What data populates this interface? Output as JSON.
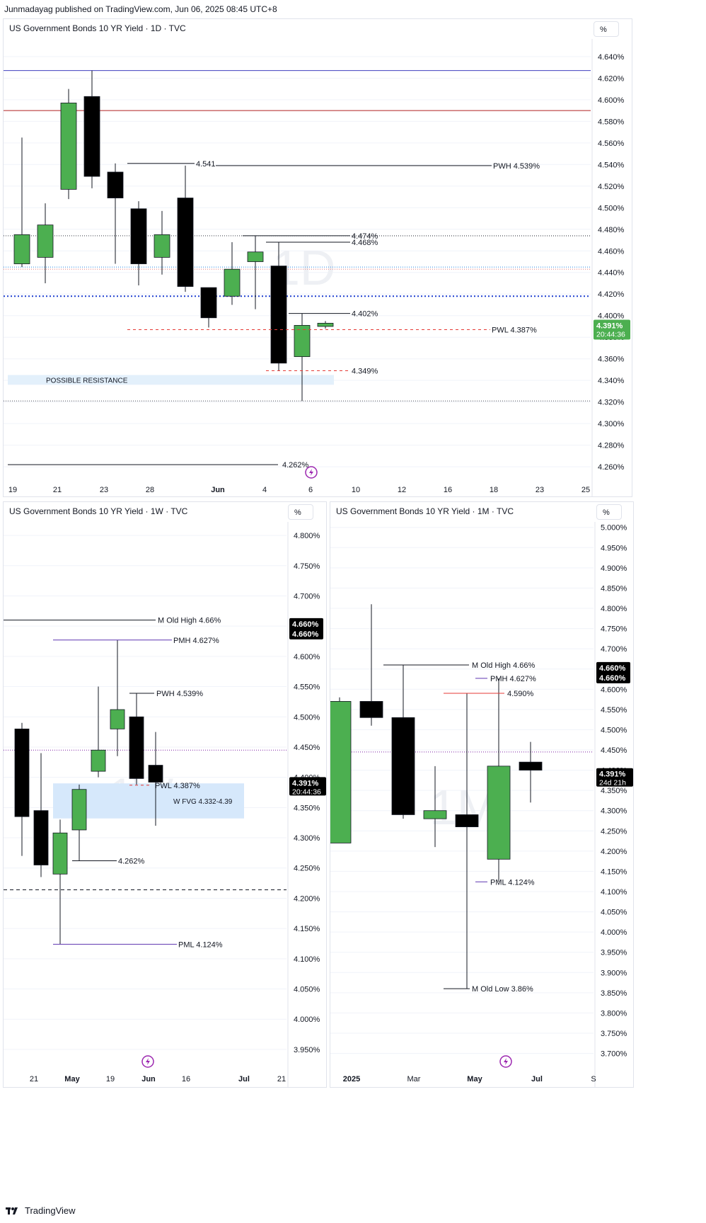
{
  "header": {
    "published": "Junmadayag published on TradingView.com, Jun 06, 2025 08:45 UTC+8"
  },
  "footer": {
    "brand": "TradingView"
  },
  "chart_data": [
    {
      "id": "daily",
      "type": "candlestick",
      "title": "US Government Bonds 10 YR Yield · 1D · TVC",
      "unit": "%",
      "watermark": "1D",
      "ylim": [
        4.245,
        4.655
      ],
      "y_ticks": [
        "4.640%",
        "4.620%",
        "4.600%",
        "4.580%",
        "4.560%",
        "4.540%",
        "4.520%",
        "4.500%",
        "4.480%",
        "4.460%",
        "4.440%",
        "4.420%",
        "4.400%",
        "4.380%",
        "4.360%",
        "4.340%",
        "4.320%",
        "4.300%",
        "4.280%",
        "4.260%"
      ],
      "x_ticks": [
        "19",
        "21",
        "23",
        "28",
        "Jun",
        "4",
        "6",
        "10",
        "12",
        "16",
        "18",
        "23",
        "25"
      ],
      "candles": [
        {
          "o": 4.448,
          "h": 4.565,
          "l": 4.445,
          "c": 4.475
        },
        {
          "o": 4.454,
          "h": 4.504,
          "l": 4.43,
          "c": 4.484
        },
        {
          "o": 4.517,
          "h": 4.61,
          "l": 4.508,
          "c": 4.597
        },
        {
          "o": 4.603,
          "h": 4.627,
          "l": 4.518,
          "c": 4.529
        },
        {
          "o": 4.533,
          "h": 4.541,
          "l": 4.448,
          "c": 4.509
        },
        {
          "o": 4.499,
          "h": 4.506,
          "l": 4.428,
          "c": 4.448
        },
        {
          "o": 4.454,
          "h": 4.497,
          "l": 4.438,
          "c": 4.475
        },
        {
          "o": 4.509,
          "h": 4.539,
          "l": 4.422,
          "c": 4.427
        },
        {
          "o": 4.426,
          "h": 4.426,
          "l": 4.389,
          "c": 4.398
        },
        {
          "o": 4.418,
          "h": 4.468,
          "l": 4.41,
          "c": 4.443
        },
        {
          "o": 4.45,
          "h": 4.474,
          "l": 4.406,
          "c": 4.459
        },
        {
          "o": 4.446,
          "h": 4.468,
          "l": 4.349,
          "c": 4.356
        },
        {
          "o": 4.362,
          "h": 4.402,
          "l": 4.321,
          "c": 4.391
        },
        {
          "o": 4.39,
          "h": 4.395,
          "l": 4.388,
          "c": 4.393
        }
      ],
      "last_price": {
        "value": "4.391%",
        "countdown": "20:44:36"
      },
      "hlines": [
        {
          "y": 4.627,
          "color": "#3f3fbf",
          "style": "solid"
        },
        {
          "y": 4.59,
          "color": "#b22222",
          "style": "solid"
        },
        {
          "y": 4.445,
          "color": "#1e88e5",
          "style": "dotted"
        },
        {
          "y": 4.443,
          "color": "#e57373",
          "style": "dotted"
        },
        {
          "y": 4.418,
          "color": "#1e3fd0",
          "style": "dotted-thick"
        }
      ],
      "labels": [
        {
          "text": "4.541",
          "y": 4.541
        },
        {
          "text": "PWH 4.539%",
          "y": 4.539
        },
        {
          "text": "4.474%",
          "y": 4.474
        },
        {
          "text": "4.468%",
          "y": 4.468
        },
        {
          "text": "4.402%",
          "y": 4.402
        },
        {
          "text": "PWL  4.387%",
          "y": 4.387
        },
        {
          "text": "4.349%",
          "y": 4.349
        },
        {
          "text": "4.262%",
          "y": 4.262
        }
      ],
      "zone": {
        "text": "POSSIBLE RESISTANCE",
        "y_top": 4.345,
        "y_bottom": 4.336
      }
    },
    {
      "id": "weekly",
      "type": "candlestick",
      "title": "US Government Bonds 10 YR Yield · 1W · TVC",
      "unit": "%",
      "watermark": "1W",
      "ylim": [
        3.93,
        4.82
      ],
      "y_ticks": [
        "4.800%",
        "4.750%",
        "4.700%",
        "4.650%",
        "4.600%",
        "4.550%",
        "4.500%",
        "4.450%",
        "4.400%",
        "4.350%",
        "4.300%",
        "4.250%",
        "4.200%",
        "4.150%",
        "4.100%",
        "4.050%",
        "4.000%",
        "3.950%"
      ],
      "x_ticks": [
        "21",
        "May",
        "19",
        "Jun",
        "16",
        "Jul",
        "21"
      ],
      "candles": [
        {
          "o": 4.48,
          "h": 4.49,
          "l": 4.27,
          "c": 4.335
        },
        {
          "o": 4.345,
          "h": 4.44,
          "l": 4.235,
          "c": 4.255
        },
        {
          "o": 4.24,
          "h": 4.33,
          "l": 4.124,
          "c": 4.308
        },
        {
          "o": 4.313,
          "h": 4.388,
          "l": 4.262,
          "c": 4.38
        },
        {
          "o": 4.41,
          "h": 4.55,
          "l": 4.4,
          "c": 4.445
        },
        {
          "o": 4.48,
          "h": 4.627,
          "l": 4.435,
          "c": 4.512
        },
        {
          "o": 4.5,
          "h": 4.539,
          "l": 4.388,
          "c": 4.398
        },
        {
          "o": 4.42,
          "h": 4.475,
          "l": 4.32,
          "c": 4.392
        }
      ],
      "last_price": {
        "value": "4.391%",
        "countdown": "20:44:36"
      },
      "marker": {
        "value": "4.660%"
      },
      "hlines": [
        {
          "y": 4.445,
          "color": "#7b1fa2",
          "style": "dotted"
        },
        {
          "y": 4.214,
          "color": "#131722",
          "style": "dashed"
        }
      ],
      "labels": [
        {
          "text": "M Old High 4.66%",
          "y": 4.66
        },
        {
          "text": "PMH 4.627%",
          "y": 4.627
        },
        {
          "text": "PWH 4.539%",
          "y": 4.539
        },
        {
          "text": "PWL  4.387%",
          "y": 4.387
        },
        {
          "text": "4.262%",
          "y": 4.262
        },
        {
          "text": "PML 4.124%",
          "y": 4.124
        }
      ],
      "zone": {
        "text": "W FVG   4.332-4.39",
        "y_top": 4.39,
        "y_bottom": 4.332
      }
    },
    {
      "id": "monthly",
      "type": "candlestick",
      "title": "US Government Bonds 10 YR Yield · 1M · TVC",
      "unit": "%",
      "watermark": "1M",
      "ylim": [
        3.68,
        5.01
      ],
      "y_ticks": [
        "5.000%",
        "4.950%",
        "4.900%",
        "4.850%",
        "4.800%",
        "4.750%",
        "4.700%",
        "4.650%",
        "4.600%",
        "4.550%",
        "4.500%",
        "4.450%",
        "4.400%",
        "4.350%",
        "4.300%",
        "4.250%",
        "4.200%",
        "4.150%",
        "4.100%",
        "4.050%",
        "4.000%",
        "3.950%",
        "3.900%",
        "3.850%",
        "3.800%",
        "3.750%",
        "3.700%"
      ],
      "x_ticks": [
        "2025",
        "Mar",
        "May",
        "Jul",
        "S"
      ],
      "candles": [
        {
          "o": 4.22,
          "h": 4.58,
          "l": 4.22,
          "c": 4.57
        },
        {
          "o": 4.57,
          "h": 4.81,
          "l": 4.51,
          "c": 4.53
        },
        {
          "o": 4.53,
          "h": 4.66,
          "l": 4.28,
          "c": 4.29
        },
        {
          "o": 4.28,
          "h": 4.41,
          "l": 4.21,
          "c": 4.3
        },
        {
          "o": 4.29,
          "h": 4.59,
          "l": 3.86,
          "c": 4.26
        },
        {
          "o": 4.18,
          "h": 4.627,
          "l": 4.124,
          "c": 4.41
        },
        {
          "o": 4.42,
          "h": 4.47,
          "l": 4.32,
          "c": 4.4
        }
      ],
      "last_price": {
        "value": "4.391%",
        "countdown": "24d 21h"
      },
      "marker": {
        "value": "4.660%"
      },
      "hlines": [
        {
          "y": 4.445,
          "color": "#7b1fa2",
          "style": "dotted"
        }
      ],
      "labels": [
        {
          "text": "M Old High 4.66%",
          "y": 4.66
        },
        {
          "text": "PMH 4.627%",
          "y": 4.627
        },
        {
          "text": "4.590%",
          "y": 4.59
        },
        {
          "text": "PML 4.124%",
          "y": 4.124
        },
        {
          "text": "M Old Low 3.86%",
          "y": 3.86
        }
      ]
    }
  ],
  "colors": {
    "bull": "#4caf50",
    "bear": "#000000",
    "axis_text": "#131722",
    "grid": "#f0f3fa",
    "price_tag": "#000000",
    "price_tag_bull": "#4caf50",
    "accent_purple": "#9c27b0"
  },
  "icons": {
    "replay": "lightning-icon"
  }
}
